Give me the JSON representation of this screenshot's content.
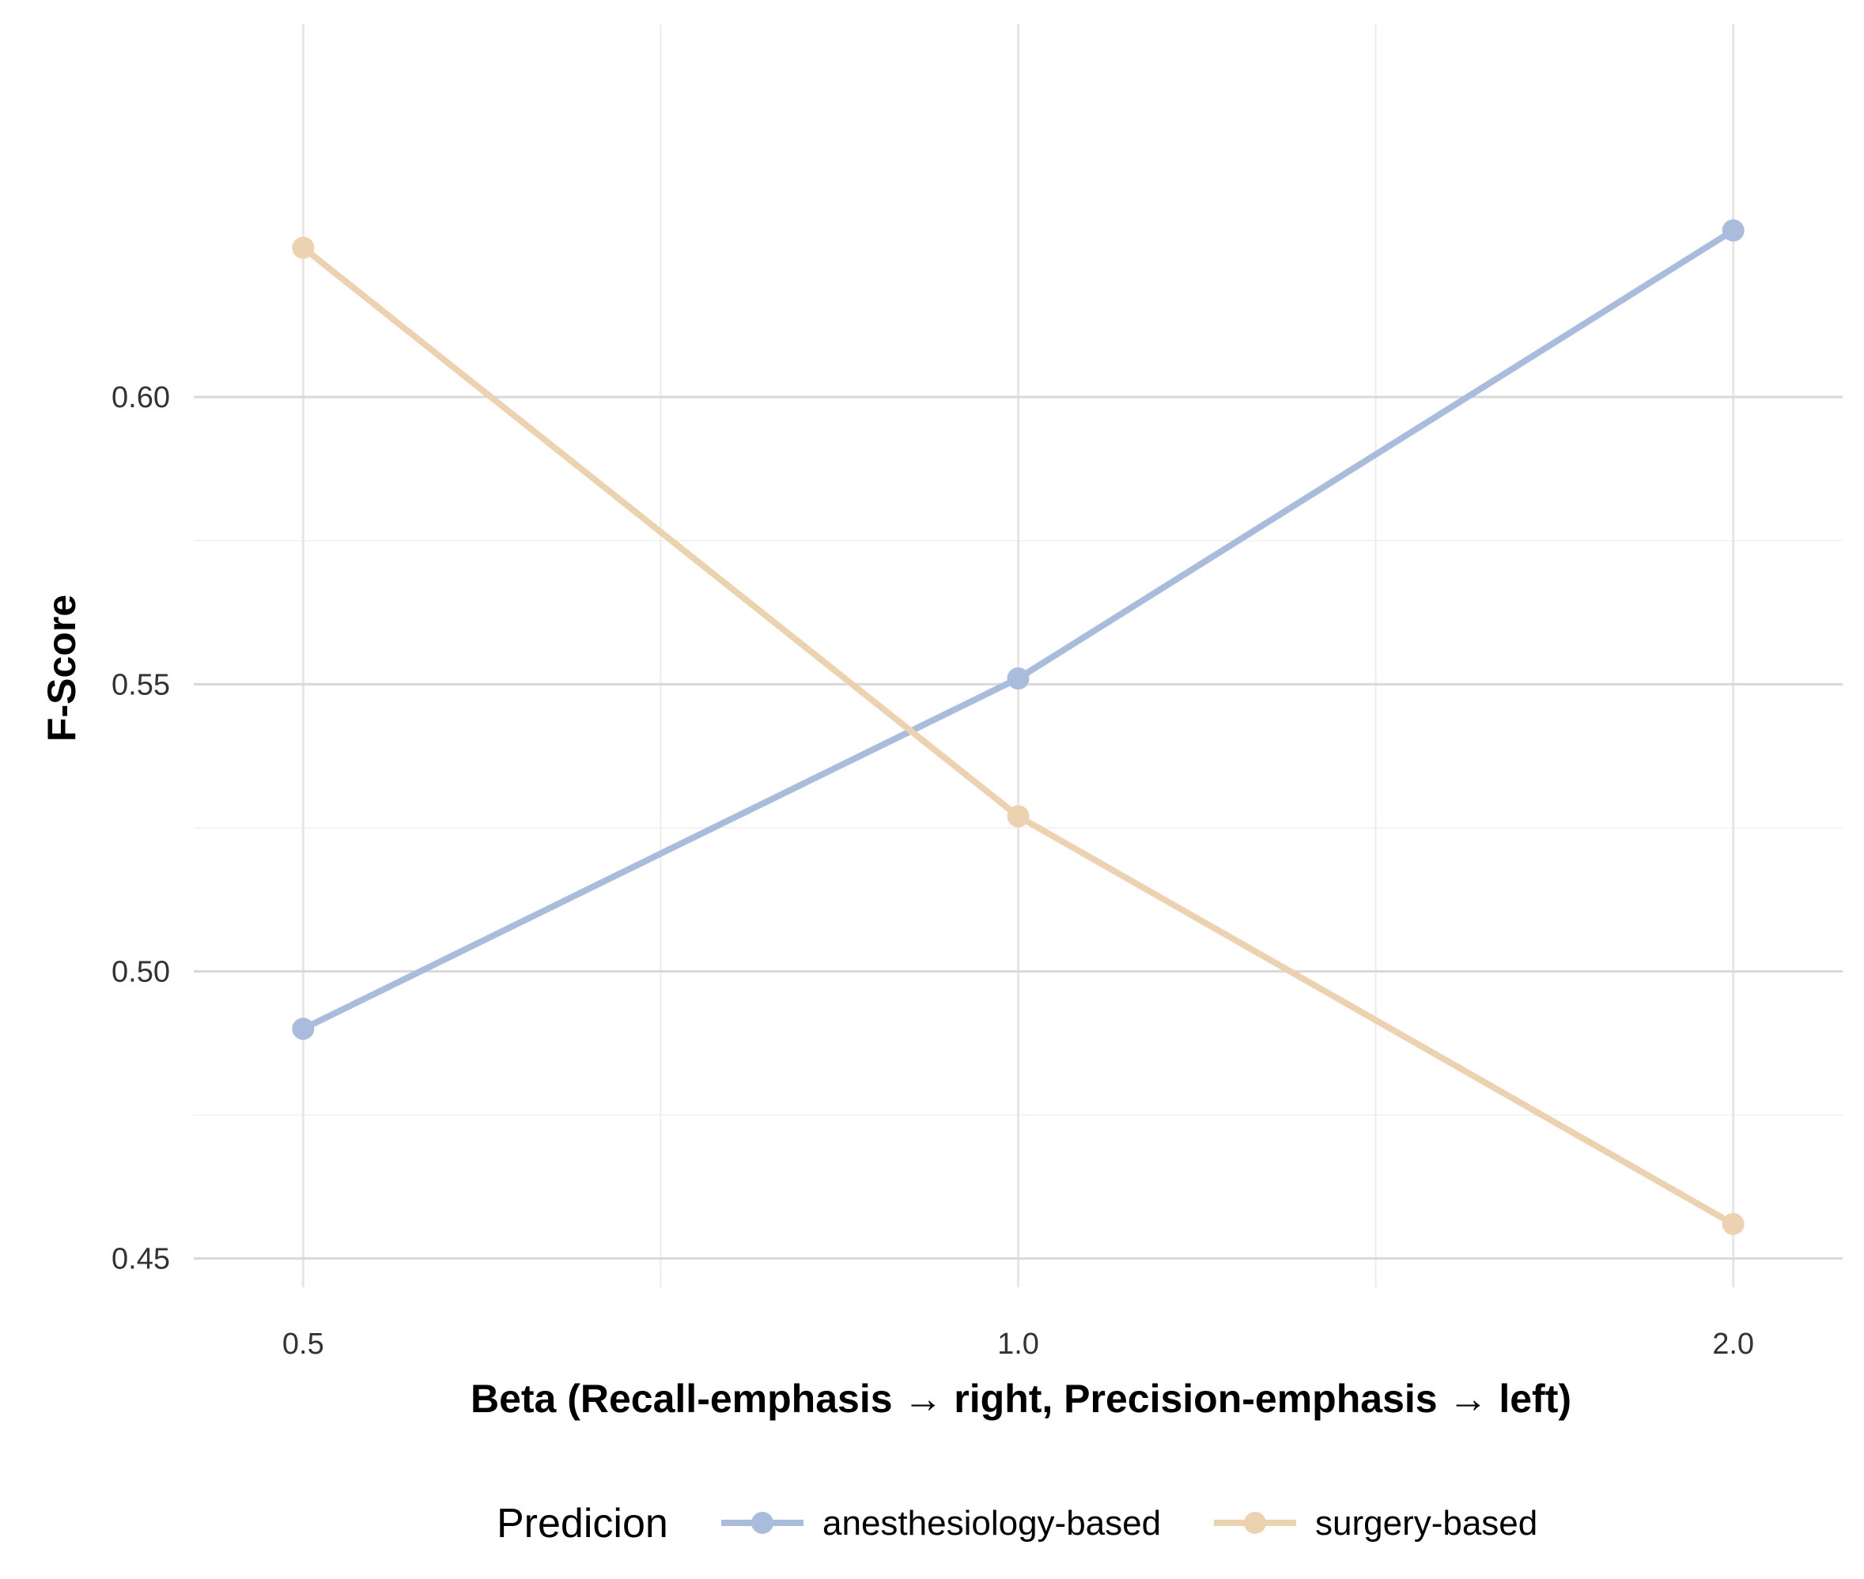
{
  "chart_data": {
    "type": "line",
    "x": [
      "0.5",
      "1.0",
      "2.0"
    ],
    "xlabel": "Beta (Recall-emphasis → right, Precision-emphasis → left)",
    "ylabel": "F-Score",
    "ylim": [
      0.445,
      0.665
    ],
    "yticks": [
      "0.45",
      "0.50",
      "0.55",
      "0.60"
    ],
    "grid": true,
    "legend_title": "Predicion",
    "legend_position": "bottom",
    "series": [
      {
        "name": "anesthesiology-based",
        "color": "#a9bcdb",
        "values": [
          0.49,
          0.551,
          0.629
        ]
      },
      {
        "name": "surgery-based",
        "color": "#ecd2b1",
        "values": [
          0.626,
          0.527,
          0.456
        ]
      }
    ]
  }
}
